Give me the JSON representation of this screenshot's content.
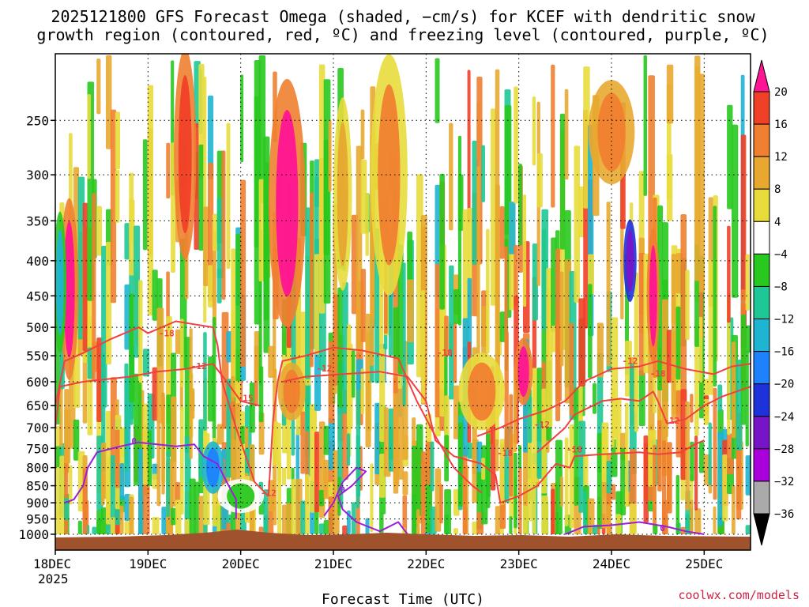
{
  "chart_data": {
    "type": "heatmap",
    "title_line1": "2025121800 GFS Forecast Omega (shaded, −cm/s) for KCEF with dendritic snow",
    "title_line2": "growth region (contoured, red, ºC) and freezing level (contoured, purple, ºC)",
    "xlabel": "Forecast Time (UTC)",
    "ylabel": "",
    "credit": "coolwx.com/models",
    "x_ticks": [
      "18DEC",
      "19DEC",
      "20DEC",
      "21DEC",
      "22DEC",
      "23DEC",
      "24DEC",
      "25DEC"
    ],
    "x_year": "2025",
    "y_ticks": [
      250,
      300,
      350,
      400,
      450,
      500,
      550,
      600,
      650,
      700,
      750,
      800,
      850,
      900,
      950,
      1000
    ],
    "y_range": [
      200,
      1000
    ],
    "x_range_days": [
      0,
      7.5
    ],
    "colorbar": {
      "bounds": [
        "20",
        "16",
        "12",
        "8",
        "4",
        "−4",
        "−8",
        "−12",
        "−16",
        "−20",
        "−24",
        "−28",
        "−32",
        "−36"
      ],
      "colors": [
        "#ff1493",
        "#f04028",
        "#f08030",
        "#e8a830",
        "#e8dc3c",
        "#ffffff",
        "#28c81e",
        "#1ec896",
        "#1eb4d2",
        "#1e82ff",
        "#1e32dc",
        "#7814c8",
        "#aa00dc",
        "#aaaaaa",
        "#000000"
      ]
    },
    "contours": [
      {
        "variable": "dendritic snow growth region",
        "color": "#f04040",
        "labels": [
          "-18",
          "-12",
          "-18",
          "-12",
          "-15",
          "-12",
          "-12",
          "-18",
          "-18",
          "-12",
          "-18",
          "-12"
        ]
      },
      {
        "variable": "freezing level",
        "color": "#9b1fd6",
        "labels": [
          "0",
          "0",
          "0"
        ]
      }
    ],
    "omega_blobs": [
      {
        "day": 0.15,
        "p": 440,
        "dd": 0.1,
        "dp": 260,
        "v": 20
      },
      {
        "day": 0.05,
        "p": 430,
        "dd": 0.07,
        "dp": 200,
        "v": -14
      },
      {
        "day": 1.4,
        "p": 280,
        "dd": 0.12,
        "dp": 190,
        "v": 19
      },
      {
        "day": 2.5,
        "p": 330,
        "dd": 0.2,
        "dp": 260,
        "v": 20
      },
      {
        "day": 2.55,
        "p": 620,
        "dd": 0.15,
        "dp": 120,
        "v": 15
      },
      {
        "day": 3.1,
        "p": 320,
        "dd": 0.1,
        "dp": 200,
        "v": 10
      },
      {
        "day": 3.6,
        "p": 300,
        "dd": 0.2,
        "dp": 230,
        "v": 12
      },
      {
        "day": 4.6,
        "p": 620,
        "dd": 0.25,
        "dp": 160,
        "v": 13
      },
      {
        "day": 5.05,
        "p": 580,
        "dd": 0.1,
        "dp": 130,
        "v": 20
      },
      {
        "day": 6.2,
        "p": 400,
        "dd": 0.07,
        "dp": 110,
        "v": -28
      },
      {
        "day": 6.45,
        "p": 450,
        "dd": 0.07,
        "dp": 200,
        "v": 20
      },
      {
        "day": 6.0,
        "p": 260,
        "dd": 0.25,
        "dp": 90,
        "v": 14
      },
      {
        "day": 1.7,
        "p": 800,
        "dd": 0.12,
        "dp": 140,
        "v": -20
      },
      {
        "day": 2.0,
        "p": 880,
        "dd": 0.25,
        "dp": 100,
        "v": -7
      }
    ]
  }
}
